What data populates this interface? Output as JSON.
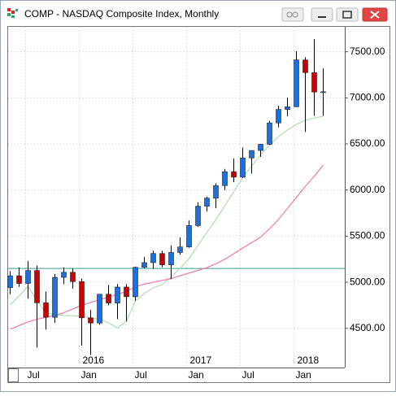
{
  "window": {
    "title": "COMP - NASDAQ Composite Index, Monthly"
  },
  "chart_data": {
    "type": "candlestick",
    "categories": [
      null,
      null,
      "Jul",
      null,
      null,
      null,
      null,
      null,
      "Jan",
      null,
      null,
      null,
      null,
      null,
      "Jul",
      null,
      null,
      null,
      null,
      null,
      "Jan",
      null,
      null,
      null,
      null,
      null,
      "Jul",
      null,
      null,
      null,
      null,
      null,
      "Jan",
      null,
      null,
      null
    ],
    "years": [
      null,
      null,
      null,
      null,
      null,
      null,
      null,
      null,
      "2016",
      null,
      null,
      null,
      null,
      null,
      null,
      null,
      null,
      null,
      null,
      null,
      "2017",
      null,
      null,
      null,
      null,
      null,
      null,
      null,
      null,
      null,
      null,
      null,
      "2018",
      null,
      null,
      null
    ],
    "open": [
      4941,
      5070,
      4987,
      5128,
      4777,
      4620,
      5053,
      5108,
      5007,
      4614,
      4558,
      4870,
      4775,
      4948,
      4843,
      5162,
      5213,
      5312,
      5189,
      5323,
      5383,
      5615,
      5825,
      5912,
      6048,
      6199,
      6140,
      6348,
      6429,
      6496,
      6728,
      6874,
      6903,
      7411,
      7273,
      7063
    ],
    "high": [
      5120,
      5160,
      5231,
      5180,
      4900,
      5090,
      5160,
      5150,
      5040,
      4700,
      4870,
      4970,
      4980,
      4980,
      5170,
      5272,
      5343,
      5342,
      5400,
      5487,
      5669,
      5867,
      5928,
      6075,
      6229,
      6342,
      6460,
      6423,
      6500,
      6750,
      6915,
      7003,
      7505,
      7440,
      7637,
      7318
    ],
    "low": [
      4870,
      4950,
      4822,
      4292,
      4487,
      4560,
      4980,
      4930,
      4313,
      4210,
      4540,
      4750,
      4600,
      4575,
      4800,
      5150,
      5145,
      5163,
      5034,
      5300,
      5374,
      5600,
      5769,
      5805,
      6000,
      6086,
      6130,
      6178,
      6360,
      6490,
      6680,
      6800,
      6903,
      6630,
      6805,
      6806
    ],
    "close": [
      5070,
      4987,
      5128,
      4777,
      4620,
      5053,
      5108,
      5007,
      4614,
      4558,
      4870,
      4775,
      4948,
      4843,
      5162,
      5213,
      5312,
      5189,
      5323,
      5383,
      5615,
      5825,
      5912,
      6048,
      6199,
      6140,
      6348,
      6429,
      6496,
      6728,
      6874,
      6903,
      7411,
      7273,
      7063,
      7066
    ],
    "up_color": "#1f6fdc",
    "down_color": "#cc0000",
    "series": [
      {
        "color": "#b9dcb9",
        "values": [
          4753,
          4850,
          4956,
          4800,
          4665,
          4650,
          4640,
          4635,
          4630,
          4615,
          4600,
          4560,
          4505,
          4576,
          4797,
          4880,
          4940,
          4973,
          5060,
          5150,
          5256,
          5400,
          5540,
          5680,
          5830,
          5980,
          6140,
          6260,
          6380,
          6490,
          6580,
          6650,
          6712,
          6756,
          6780,
          6800
        ]
      },
      {
        "color": "#f080b0",
        "values": [
          4490,
          4530,
          4570,
          4600,
          4620,
          4640,
          4670,
          4710,
          4750,
          4780,
          4810,
          4840,
          4870,
          4900,
          4950,
          4980,
          5000,
          5020,
          5040,
          5070,
          5100,
          5130,
          5160,
          5200,
          5250,
          5310,
          5370,
          5430,
          5490,
          5580,
          5680,
          5800,
          5920,
          6040,
          6150,
          6270
        ]
      }
    ],
    "hline": {
      "value": 5150,
      "color": "#3c9c9c"
    },
    "ylim": [
      4075,
      7770
    ],
    "yticks": [
      {
        "value": 4500,
        "label": "4500.00"
      },
      {
        "value": 5000,
        "label": "5000.00"
      },
      {
        "value": 5500,
        "label": "5500.00"
      },
      {
        "value": 6000,
        "label": "6000.00"
      },
      {
        "value": 6500,
        "label": "6500.00"
      },
      {
        "value": 7000,
        "label": "7000.00"
      },
      {
        "value": 7500,
        "label": "7500.00"
      }
    ],
    "grid": true
  }
}
